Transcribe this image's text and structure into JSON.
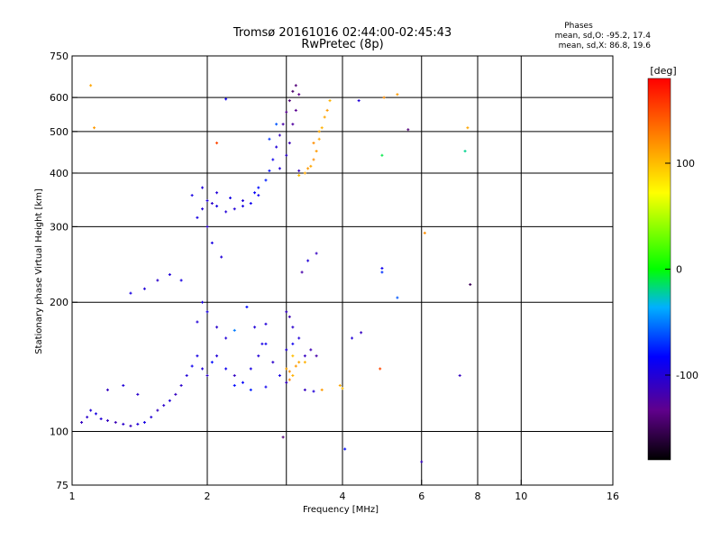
{
  "chart_data": {
    "type": "scatter",
    "title": "Tromsø 20161016 02:44:00-02:45:43",
    "subtitle": "RwPretec (8p)",
    "xlabel": "Frequency [MHz]",
    "ylabel": "Stationary phase Virtual Height [km]",
    "x_scale": "log",
    "y_scale": "log",
    "xlim": [
      1,
      16
    ],
    "ylim": [
      75,
      750
    ],
    "x_ticks": [
      "1",
      "2",
      "4",
      "6",
      "8",
      "10",
      "16"
    ],
    "y_ticks": [
      "75",
      "100",
      "200",
      "300",
      "400",
      "500",
      "600",
      "750"
    ],
    "x_gridlines": [
      2,
      3,
      4,
      6,
      8,
      10
    ],
    "y_gridlines": [
      100,
      200,
      300,
      400,
      500,
      600
    ],
    "phase_stats": {
      "heading": "Phases",
      "line_o": "mean, sd,O: -95.2, 17.4",
      "line_x": "mean, sd,X:  86.8, 19.6"
    },
    "colorbar": {
      "label": "[deg]",
      "range": [
        -180,
        180
      ],
      "ticks": [
        "100",
        "0",
        "-100"
      ],
      "tick_values": [
        100,
        0,
        -100
      ]
    },
    "series": [
      {
        "points": [
          [
            1.05,
            105,
            -110
          ],
          [
            1.08,
            108,
            -105
          ],
          [
            1.1,
            112,
            -100
          ],
          [
            1.13,
            110,
            -95
          ],
          [
            1.16,
            107,
            -100
          ],
          [
            1.2,
            106,
            -110
          ],
          [
            1.25,
            105,
            -115
          ],
          [
            1.3,
            104,
            -105
          ],
          [
            1.35,
            103,
            -110
          ],
          [
            1.4,
            104,
            -100
          ],
          [
            1.45,
            105,
            -95
          ],
          [
            1.5,
            108,
            -100
          ],
          [
            1.55,
            112,
            -110
          ],
          [
            1.6,
            115,
            -105
          ],
          [
            1.65,
            118,
            -100
          ],
          [
            1.7,
            122,
            -110
          ],
          [
            1.75,
            128,
            -105
          ],
          [
            1.8,
            135,
            -100
          ],
          [
            1.85,
            142,
            -90
          ],
          [
            1.9,
            150,
            -95
          ],
          [
            1.95,
            140,
            -100
          ],
          [
            2.0,
            135,
            -105
          ],
          [
            2.05,
            145,
            -80
          ],
          [
            2.1,
            150,
            -100
          ],
          [
            2.2,
            140,
            -90
          ],
          [
            2.3,
            135,
            -110
          ],
          [
            2.4,
            130,
            -85
          ],
          [
            2.5,
            140,
            -95
          ],
          [
            2.6,
            150,
            -100
          ],
          [
            2.7,
            160,
            -90
          ],
          [
            2.8,
            145,
            -105
          ],
          [
            2.9,
            135,
            -95
          ],
          [
            3.0,
            130,
            -110
          ],
          [
            1.35,
            210,
            -95
          ],
          [
            1.45,
            215,
            -100
          ],
          [
            1.55,
            225,
            -105
          ],
          [
            1.65,
            232,
            -100
          ],
          [
            1.75,
            225,
            -95
          ],
          [
            1.9,
            180,
            -100
          ],
          [
            2.0,
            190,
            -95
          ],
          [
            2.1,
            175,
            -105
          ],
          [
            2.2,
            165,
            -100
          ],
          [
            2.45,
            195,
            -80
          ],
          [
            2.55,
            175,
            -100
          ],
          [
            2.65,
            160,
            -95
          ],
          [
            2.7,
            178,
            -100
          ],
          [
            3.0,
            190,
            -110
          ],
          [
            3.05,
            185,
            -115
          ],
          [
            3.1,
            175,
            -105
          ],
          [
            3.2,
            165,
            -100
          ],
          [
            3.3,
            150,
            -110
          ],
          [
            3.4,
            155,
            -115
          ],
          [
            3.5,
            150,
            -120
          ],
          [
            1.2,
            125,
            -110
          ],
          [
            1.3,
            128,
            -100
          ],
          [
            1.4,
            122,
            -105
          ],
          [
            2.3,
            128,
            -80
          ],
          [
            2.5,
            125,
            -75
          ],
          [
            2.7,
            127,
            -90
          ],
          [
            3.3,
            125,
            -110
          ],
          [
            3.45,
            124,
            -100
          ],
          [
            3.0,
            155,
            -100
          ],
          [
            3.1,
            160,
            -90
          ]
        ]
      },
      {
        "points": [
          [
            3.0,
            140,
            110
          ],
          [
            3.05,
            138,
            120
          ],
          [
            3.1,
            135,
            105
          ],
          [
            3.15,
            142,
            115
          ],
          [
            3.2,
            145,
            110
          ],
          [
            3.1,
            150,
            100
          ],
          [
            3.05,
            132,
            125
          ],
          [
            3.95,
            128,
            110
          ],
          [
            4.0,
            126,
            100
          ],
          [
            3.6,
            125,
            115
          ],
          [
            3.3,
            145,
            105
          ]
        ]
      },
      {
        "points": [
          [
            1.9,
            315,
            -95
          ],
          [
            1.95,
            330,
            -100
          ],
          [
            2.0,
            345,
            -100
          ],
          [
            2.05,
            340,
            -105
          ],
          [
            2.1,
            335,
            -95
          ],
          [
            2.2,
            325,
            -100
          ],
          [
            2.3,
            330,
            -100
          ],
          [
            2.4,
            335,
            -95
          ],
          [
            2.5,
            340,
            -90
          ],
          [
            2.55,
            360,
            -85
          ],
          [
            2.6,
            370,
            -80
          ],
          [
            2.7,
            385,
            -75
          ],
          [
            2.75,
            405,
            -80
          ],
          [
            2.8,
            430,
            -90
          ],
          [
            2.85,
            460,
            -100
          ],
          [
            2.9,
            490,
            -110
          ],
          [
            2.95,
            520,
            -120
          ],
          [
            3.0,
            555,
            -130
          ],
          [
            3.05,
            590,
            -140
          ],
          [
            3.1,
            620,
            -145
          ],
          [
            3.15,
            640,
            -140
          ],
          [
            3.2,
            610,
            -135
          ],
          [
            3.15,
            560,
            -130
          ],
          [
            3.1,
            520,
            -125
          ],
          [
            3.05,
            470,
            -115
          ],
          [
            3.0,
            440,
            -105
          ],
          [
            1.85,
            355,
            -95
          ],
          [
            1.95,
            370,
            -100
          ],
          [
            2.0,
            300,
            -105
          ],
          [
            2.1,
            360,
            -100
          ],
          [
            2.25,
            350,
            -95
          ],
          [
            2.4,
            345,
            -100
          ],
          [
            2.6,
            355,
            -90
          ],
          [
            2.9,
            410,
            -100
          ],
          [
            3.2,
            405,
            -110
          ],
          [
            2.75,
            480,
            -70
          ],
          [
            2.85,
            520,
            -60
          ]
        ]
      },
      {
        "points": [
          [
            3.3,
            400,
            110
          ],
          [
            3.35,
            410,
            115
          ],
          [
            3.4,
            415,
            110
          ],
          [
            3.45,
            430,
            120
          ],
          [
            3.5,
            450,
            115
          ],
          [
            3.55,
            480,
            110
          ],
          [
            3.6,
            510,
            105
          ],
          [
            3.65,
            540,
            110
          ],
          [
            3.7,
            560,
            115
          ],
          [
            3.75,
            590,
            105
          ],
          [
            3.2,
            395,
            100
          ],
          [
            3.45,
            470,
            120
          ],
          [
            3.55,
            500,
            110
          ]
        ]
      },
      {
        "points": [
          [
            1.1,
            640,
            110
          ],
          [
            1.12,
            510,
            115
          ],
          [
            4.9,
            440,
            -10
          ],
          [
            4.95,
            600,
            120
          ],
          [
            5.3,
            610,
            115
          ],
          [
            5.6,
            505,
            -140
          ],
          [
            6.1,
            290,
            120
          ],
          [
            7.5,
            450,
            -20
          ],
          [
            7.6,
            510,
            110
          ],
          [
            4.35,
            590,
            -100
          ],
          [
            4.9,
            240,
            -90
          ],
          [
            4.9,
            235,
            -70
          ],
          [
            5.3,
            205,
            -60
          ],
          [
            7.3,
            135,
            -110
          ],
          [
            7.7,
            220,
            -150
          ],
          [
            6.0,
            85,
            -110
          ],
          [
            4.05,
            91,
            -80
          ],
          [
            2.95,
            97,
            -140
          ],
          [
            2.2,
            595,
            -90
          ],
          [
            2.1,
            470,
            150
          ],
          [
            3.5,
            260,
            -110
          ],
          [
            3.35,
            250,
            -100
          ],
          [
            3.25,
            235,
            -120
          ],
          [
            4.2,
            165,
            -100
          ],
          [
            4.4,
            170,
            -110
          ],
          [
            4.85,
            140,
            150
          ],
          [
            1.95,
            200,
            -95
          ],
          [
            2.15,
            255,
            -100
          ],
          [
            2.3,
            172,
            -50
          ],
          [
            2.05,
            275,
            -95
          ]
        ]
      }
    ]
  }
}
